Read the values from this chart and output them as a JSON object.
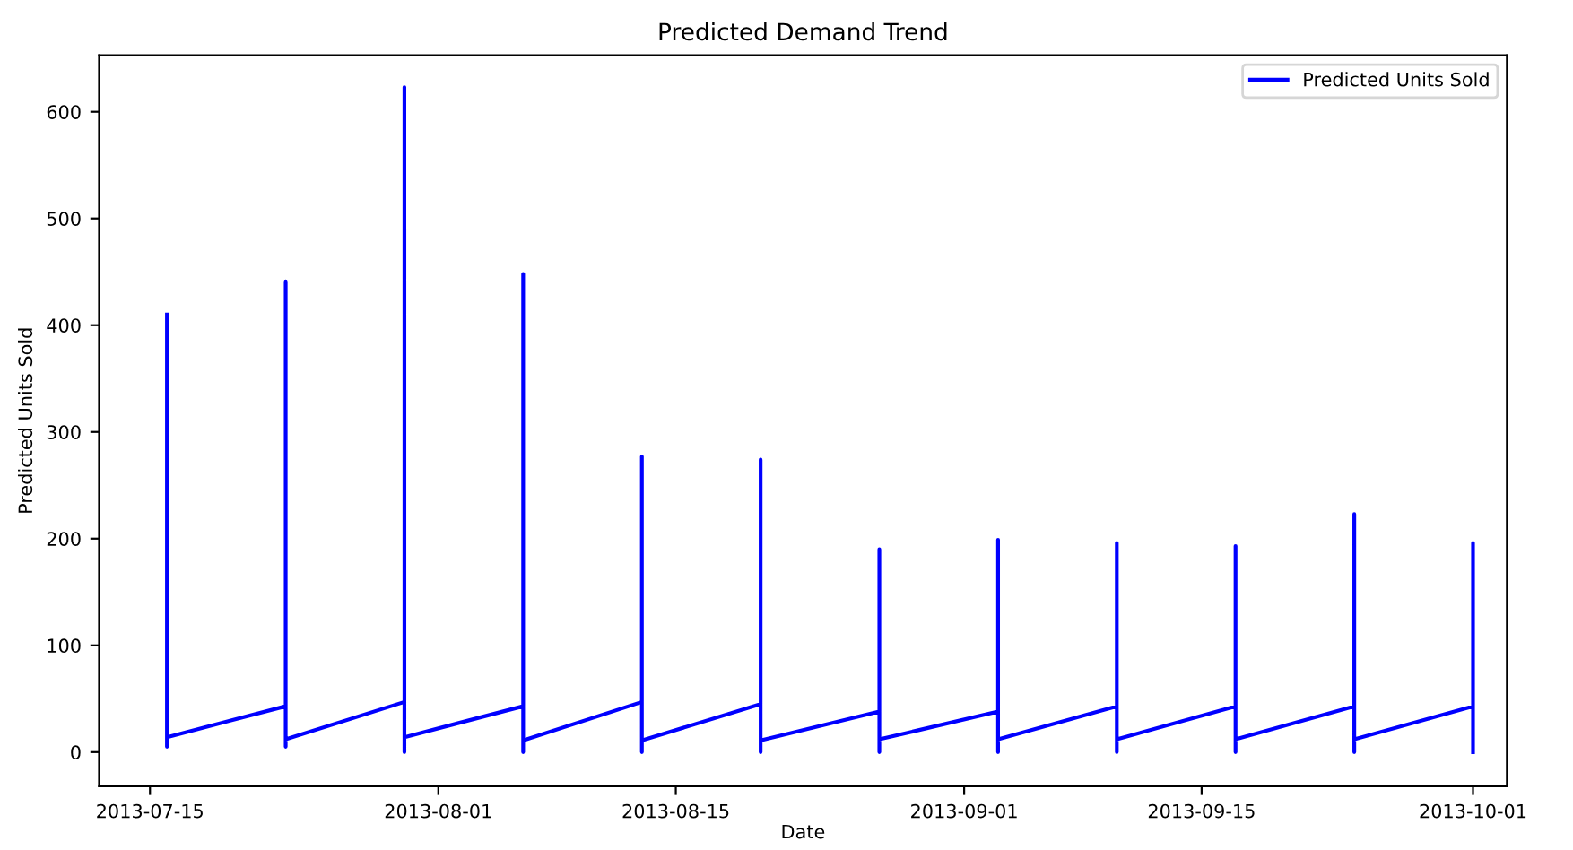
{
  "chart_data": {
    "type": "line",
    "title": "Predicted Demand Trend",
    "xlabel": "Date",
    "ylabel": "Predicted Units Sold",
    "x": [
      "2013-07-16",
      "2013-07-16",
      "2013-07-16",
      "2013-07-23",
      "2013-07-23",
      "2013-07-23",
      "2013-07-23",
      "2013-07-30",
      "2013-07-30",
      "2013-07-30",
      "2013-07-30",
      "2013-08-06",
      "2013-08-06",
      "2013-08-06",
      "2013-08-06",
      "2013-08-13",
      "2013-08-13",
      "2013-08-13",
      "2013-08-13",
      "2013-08-20",
      "2013-08-20",
      "2013-08-20",
      "2013-08-20",
      "2013-08-27",
      "2013-08-27",
      "2013-08-27",
      "2013-08-27",
      "2013-09-03",
      "2013-09-03",
      "2013-09-03",
      "2013-09-03",
      "2013-09-10",
      "2013-09-10",
      "2013-09-10",
      "2013-09-10",
      "2013-09-17",
      "2013-09-17",
      "2013-09-17",
      "2013-09-17",
      "2013-09-24",
      "2013-09-24",
      "2013-09-24",
      "2013-09-24",
      "2013-10-01",
      "2013-10-01",
      "2013-10-01"
    ],
    "series": [
      {
        "name": "Predicted Units Sold",
        "color": "#0000ff",
        "values": [
          410,
          5,
          14,
          43,
          441,
          5,
          12,
          47,
          623,
          0,
          14,
          43,
          448,
          0,
          11,
          47,
          277,
          0,
          11,
          45,
          274,
          0,
          11,
          38,
          190,
          0,
          12,
          38,
          199,
          0,
          12,
          43,
          196,
          0,
          12,
          43,
          193,
          0,
          12,
          43,
          223,
          0,
          12,
          43,
          196,
          0
        ]
      }
    ],
    "xlim": [
      "2013-07-12",
      "2013-10-03"
    ],
    "xticks": [
      "2013-07-15",
      "2013-08-01",
      "2013-08-15",
      "2013-09-01",
      "2013-09-15",
      "2013-10-01"
    ],
    "ylim": [
      -32,
      653
    ],
    "yticks": [
      0,
      100,
      200,
      300,
      400,
      500,
      600
    ],
    "grid": false,
    "legend": "top right",
    "line_style": "solid",
    "marker": "none"
  }
}
